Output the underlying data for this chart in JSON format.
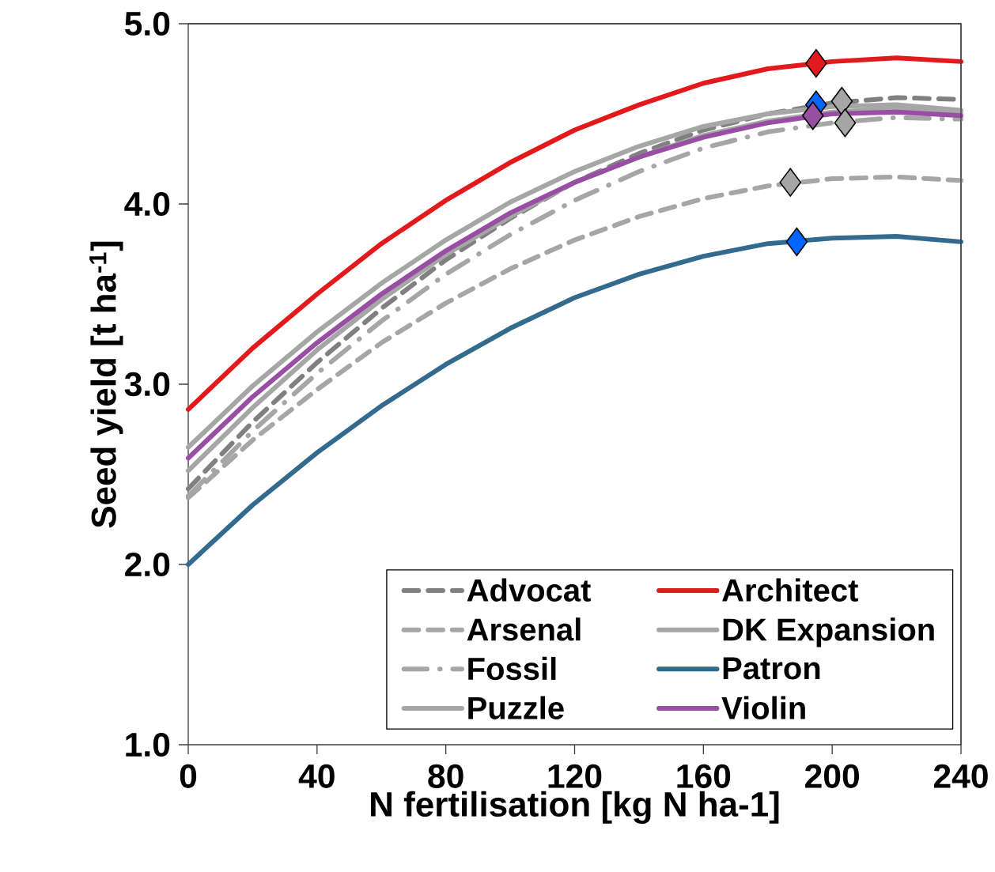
{
  "chart_data": {
    "type": "line",
    "xlabel": "N fertilisation [kg N ha-1]",
    "ylabel": "Seed yield [t ha$^{-1}$]",
    "x": [
      0,
      20,
      40,
      60,
      80,
      100,
      120,
      140,
      160,
      180,
      200,
      220,
      240
    ],
    "xlim": [
      0,
      240
    ],
    "xticks": [
      0,
      40,
      80,
      120,
      160,
      200,
      240
    ],
    "ylim": [
      1,
      5
    ],
    "yticks": [
      {
        "value": 1,
        "label": "1.0"
      },
      {
        "value": 2,
        "label": "2.0"
      },
      {
        "value": 3,
        "label": "3.0"
      },
      {
        "value": 4,
        "label": "4.0"
      },
      {
        "value": 5,
        "label": "5.0"
      }
    ],
    "legend": "bottom right",
    "marker": "none",
    "series": [
      {
        "name": "Advocat",
        "color": "#808080",
        "line_style": "dashed",
        "values": [
          2.42,
          2.79,
          3.12,
          3.42,
          3.69,
          3.92,
          4.12,
          4.28,
          4.41,
          4.5,
          4.56,
          4.59,
          4.58
        ]
      },
      {
        "name": "Architect",
        "color": "#e31a1c",
        "line_style": "solid",
        "values": [
          2.86,
          3.2,
          3.5,
          3.78,
          4.02,
          4.23,
          4.41,
          4.55,
          4.67,
          4.75,
          4.79,
          4.81,
          4.79
        ]
      },
      {
        "name": "Arsenal",
        "color": "#a6a6a6",
        "line_style": "dashed",
        "values": [
          2.37,
          2.69,
          2.97,
          3.23,
          3.45,
          3.64,
          3.8,
          3.93,
          4.03,
          4.1,
          4.14,
          4.15,
          4.13
        ]
      },
      {
        "name": "DK Expansion",
        "color": "#a6a6a6",
        "line_style": "solid",
        "values": [
          2.65,
          2.99,
          3.29,
          3.56,
          3.8,
          4.01,
          4.18,
          4.32,
          4.43,
          4.5,
          4.54,
          4.55,
          4.52
        ]
      },
      {
        "name": "Fossil",
        "color": "#a6a6a6",
        "line_style": "dashdot",
        "values": [
          2.38,
          2.74,
          3.06,
          3.35,
          3.61,
          3.83,
          4.02,
          4.18,
          4.31,
          4.4,
          4.45,
          4.48,
          4.47
        ]
      },
      {
        "name": "Patron",
        "color": "#336b8e",
        "line_style": "solid",
        "values": [
          2.0,
          2.33,
          2.62,
          2.88,
          3.11,
          3.31,
          3.48,
          3.61,
          3.71,
          3.78,
          3.81,
          3.82,
          3.79
        ]
      },
      {
        "name": "Puzzle",
        "color": "#a6a6a6",
        "line_style": "solid",
        "values": [
          2.52,
          2.87,
          3.19,
          3.47,
          3.72,
          3.93,
          4.12,
          4.26,
          4.38,
          4.46,
          4.51,
          4.53,
          4.51
        ]
      },
      {
        "name": "Violin",
        "color": "#984ea3",
        "line_style": "solid",
        "values": [
          2.59,
          2.93,
          3.23,
          3.5,
          3.74,
          3.95,
          4.12,
          4.26,
          4.37,
          4.45,
          4.5,
          4.51,
          4.49
        ]
      },
      {
        "type": "scatter",
        "marker": "diamond",
        "x": [
          195,
          195,
          189,
          187,
          203,
          204,
          194
        ],
        "values": [
          4.55,
          4.78,
          3.79,
          4.12,
          4.57,
          4.45,
          4.49
        ],
        "colors": [
          "#0066ff",
          "#e31a1c",
          "#0066ff",
          "#a6a6a6",
          "#a6a6a6",
          "#a6a6a6",
          "#984ea3"
        ]
      }
    ]
  }
}
